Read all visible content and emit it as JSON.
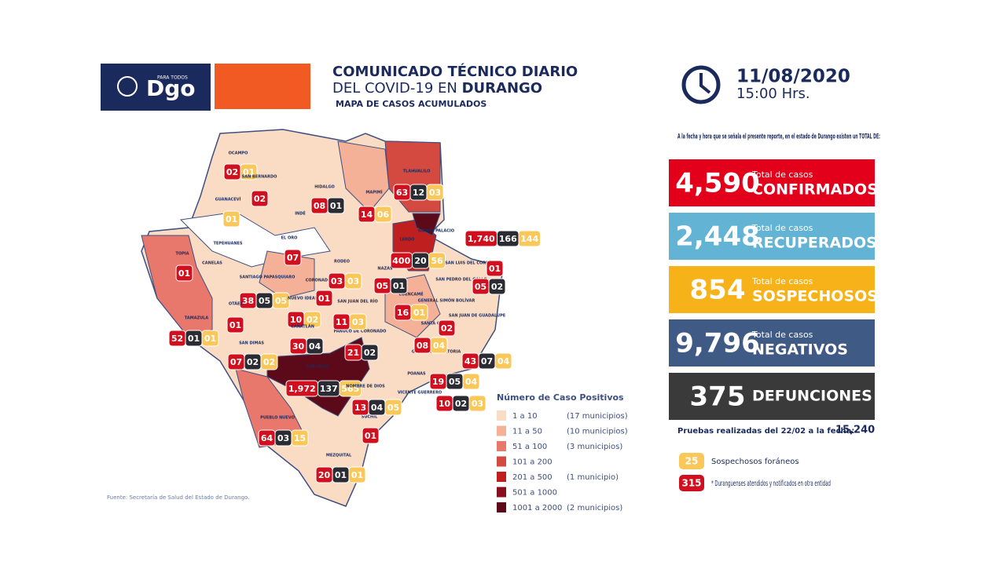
{
  "header": {
    "logo_tag": "PARA TODOS",
    "logo_text": "Dgo",
    "title_line1": "COMUNICADO TÉCNICO DIARIO",
    "title_line2_prefix": "DEL COVID-19 EN",
    "title_line2_bold": "DURANGO",
    "subtitle": "MAPA DE CASOS ACUMULADOS",
    "date": "11/08/2020",
    "time": "15:00 Hrs."
  },
  "summary": {
    "intro": "A la fecha y hora que se señala el presente reporte, en el estado de Durango existen un TOTAL DE:",
    "stats": [
      {
        "value": "4,590",
        "caption": "Total de casos",
        "label": "CONFIRMADOS",
        "color": "#e3001b"
      },
      {
        "value": "2,448",
        "caption": "Total de casos",
        "label": "RECUPERADOS",
        "color": "#62b3d4"
      },
      {
        "value": "854",
        "caption": "Total de casos",
        "label": "SOSPECHOSOS",
        "color": "#f8b219"
      },
      {
        "value": "9,796",
        "caption": "Total de casos",
        "label": "NEGATIVOS",
        "color": "#3f5a85"
      },
      {
        "value": "375",
        "label": "DEFUNCIONES",
        "color": "#3a3a3a"
      }
    ],
    "tests": {
      "label": "Pruebas realizadas del 22/02 a la fecha:",
      "value": "15,240"
    },
    "key": [
      {
        "value": "25",
        "label": "Sospechosos foráneos",
        "color": "#f9c75a"
      },
      {
        "value": "315",
        "label": "* Duranguenses atendidos y notificados en otra entidad",
        "color": "#d0101e"
      }
    ]
  },
  "legend": {
    "title": "Número de Caso Positivos",
    "items": [
      {
        "range": "1 a 10",
        "note": "(17 municipios)",
        "color": "#fadcc5"
      },
      {
        "range": "11 a 50",
        "note": "(10 municipios)",
        "color": "#f4b197"
      },
      {
        "range": "51 a 100",
        "note": "(3 municipios)",
        "color": "#e8776c"
      },
      {
        "range": "101 a 200",
        "color": "#d44a40"
      },
      {
        "range": "201 a 500",
        "note": "(1 municipio)",
        "color": "#bf1f1f"
      },
      {
        "range": "501 a 1000",
        "color": "#8a0f1c"
      },
      {
        "range": "1001 a 2000",
        "note": "(2 municipios)",
        "color": "#5c0a1a"
      }
    ]
  },
  "map": {
    "municipalities": [
      {
        "name": "OCAMPO",
        "badges": {
          "confirmed": "02",
          "suspected": "01"
        }
      },
      {
        "name": "SAN BERNARDO",
        "badges": {
          "confirmed": "02"
        }
      },
      {
        "name": "GUANACEVÍ",
        "badges": {
          "suspected": "01"
        }
      },
      {
        "name": "INDÉ"
      },
      {
        "name": "HIDALGO",
        "badges": {
          "confirmed": "08",
          "deaths": "01"
        }
      },
      {
        "name": "MAPIMÍ",
        "badges": {
          "confirmed": "14",
          "suspected": "06"
        }
      },
      {
        "name": "TLAHUALILO",
        "badges": {
          "confirmed": "63",
          "deaths": "12",
          "suspected": "03"
        }
      },
      {
        "name": "GÓMEZ PALACIO",
        "badges": {
          "confirmed": "1,740",
          "deaths": "166",
          "suspected": "144"
        }
      },
      {
        "name": "LERDO",
        "badges": {
          "confirmed": "400",
          "deaths": "20",
          "suspected": "56"
        }
      },
      {
        "name": "TEPEHUANES"
      },
      {
        "name": "EL ORO",
        "badges": {
          "confirmed": "07"
        }
      },
      {
        "name": "TOPIA",
        "badges": {
          "confirmed": "01"
        }
      },
      {
        "name": "TAMAZULA",
        "badges": {
          "confirmed": "52",
          "deaths": "01",
          "suspected": "01"
        }
      },
      {
        "name": "CANELAS"
      },
      {
        "name": "SANTIAGO PAPASQUIARO",
        "badges": {
          "confirmed": "38",
          "deaths": "05",
          "suspected": "05"
        }
      },
      {
        "name": "OTÁEZ",
        "badges": {
          "confirmed": "01"
        }
      },
      {
        "name": "NUEVO IDEAL",
        "badges": {
          "confirmed": "10",
          "suspected": "02"
        }
      },
      {
        "name": "CANATLÁN",
        "badges": {
          "confirmed": "30",
          "deaths": "04"
        }
      },
      {
        "name": "SAN DIMAS",
        "badges": {
          "confirmed": "07",
          "deaths": "02",
          "suspected": "02"
        }
      },
      {
        "name": "DURANGO",
        "badges": {
          "confirmed": "1,972",
          "deaths": "137",
          "suspected": "565"
        }
      },
      {
        "name": "PUEBLO NUEVO",
        "badges": {
          "confirmed": "64",
          "deaths": "03",
          "suspected": "15"
        }
      },
      {
        "name": "MEZQUITAL",
        "badges": {
          "confirmed": "20",
          "deaths": "01",
          "suspected": "01"
        }
      },
      {
        "name": "SÚCHIL",
        "badges": {
          "confirmed": "01"
        }
      },
      {
        "name": "NOMBRE DE DIOS",
        "badges": {
          "confirmed": "13",
          "deaths": "04",
          "suspected": "05"
        }
      },
      {
        "name": "VICENTE GUERRERO",
        "badges": {
          "confirmed": "10",
          "deaths": "02",
          "suspected": "03"
        }
      },
      {
        "name": "POANAS",
        "badges": {
          "confirmed": "19",
          "deaths": "05",
          "suspected": "04"
        }
      },
      {
        "name": "GUADALUPE VICTORIA",
        "badges": {
          "confirmed": "43",
          "deaths": "07",
          "suspected": "04"
        }
      },
      {
        "name": "PÁNUCO DE CORONADO",
        "badges": {
          "confirmed": "21",
          "deaths": "02"
        }
      },
      {
        "name": "SANTA CLARA",
        "badges": {
          "confirmed": "08",
          "suspected": "04"
        }
      },
      {
        "name": "GENERAL SIMÓN BOLÍVAR",
        "badges": {
          "confirmed": "02"
        }
      },
      {
        "name": "SAN JUAN DE GUADALUPE"
      },
      {
        "name": "CUENCAMÉ",
        "badges": {
          "confirmed": "16",
          "suspected": "01"
        }
      },
      {
        "name": "SAN JUAN DEL RÍO",
        "badges": {
          "confirmed": "11",
          "suspected": "03"
        }
      },
      {
        "name": "CORONADO",
        "badges": {
          "confirmed": "01"
        }
      },
      {
        "name": "RODEO",
        "badges": {
          "confirmed": "03",
          "suspected": "03"
        }
      },
      {
        "name": "NAZAS",
        "badges": {
          "confirmed": "05",
          "deaths": "01"
        }
      },
      {
        "name": "SAN LUIS DEL CORDERO",
        "badges": {
          "confirmed": "01"
        }
      },
      {
        "name": "SAN PEDRO DEL GALLO",
        "badges": {
          "confirmed": "05",
          "deaths": "02"
        }
      }
    ]
  },
  "source": "Fuente: Secretaría de Salud del Estado de Durango."
}
